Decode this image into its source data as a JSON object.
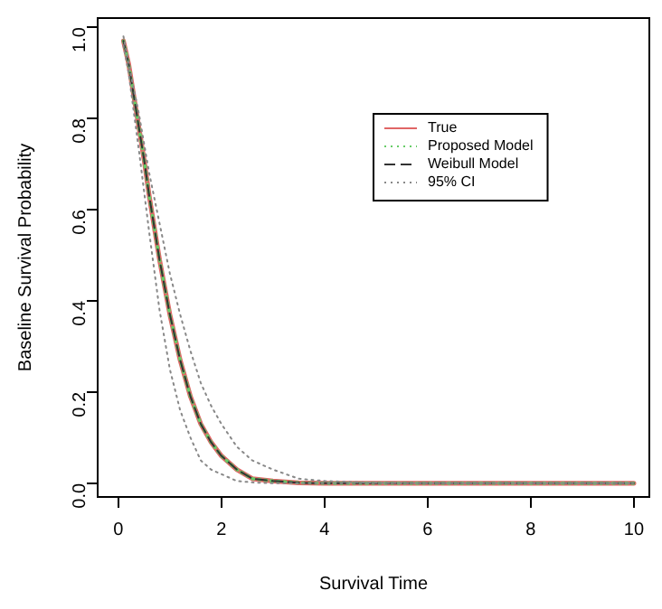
{
  "chart_data": {
    "type": "line",
    "xlabel": "Survival Time",
    "ylabel": "Baseline Survival Probability",
    "xlim": [
      -0.4,
      10.3
    ],
    "ylim": [
      -0.03,
      1.02
    ],
    "xticks": [
      0,
      2,
      4,
      6,
      8,
      10
    ],
    "yticks": [
      {
        "value": 0,
        "label": "0.0"
      },
      0.2,
      0.4,
      0.6,
      0.8,
      {
        "value": 1,
        "label": "1.0"
      }
    ],
    "grid": false,
    "legend": "top right",
    "marker": "none",
    "series": [
      {
        "name": "True",
        "color": "#e06666",
        "line_style": "solid",
        "x": [
          0.1,
          0.2,
          0.3,
          0.4,
          0.5,
          0.6,
          0.7,
          0.8,
          0.9,
          1.0,
          1.2,
          1.4,
          1.6,
          1.8,
          2.0,
          2.3,
          2.6,
          3.0,
          3.5,
          4,
          5,
          6,
          7,
          8,
          9,
          10
        ],
        "values": [
          0.97,
          0.92,
          0.85,
          0.78,
          0.71,
          0.63,
          0.56,
          0.49,
          0.43,
          0.37,
          0.27,
          0.19,
          0.13,
          0.09,
          0.06,
          0.03,
          0.01,
          0.005,
          0.001,
          0,
          0,
          0,
          0,
          0,
          0,
          0
        ]
      },
      {
        "name": "Proposed Model",
        "color": "#66cc66",
        "line_style": "dotted",
        "x": [
          0.1,
          0.2,
          0.3,
          0.4,
          0.5,
          0.6,
          0.7,
          0.8,
          0.9,
          1.0,
          1.2,
          1.4,
          1.6,
          1.8,
          2.0,
          2.3,
          2.6,
          3.0,
          3.5,
          4,
          5,
          6,
          7,
          8,
          9,
          10
        ],
        "values": [
          0.97,
          0.92,
          0.85,
          0.78,
          0.71,
          0.63,
          0.56,
          0.49,
          0.43,
          0.37,
          0.27,
          0.19,
          0.13,
          0.09,
          0.06,
          0.03,
          0.01,
          0.005,
          0.001,
          0,
          0,
          0,
          0,
          0,
          0,
          0
        ]
      },
      {
        "name": "Weibull Model",
        "color": "#333333",
        "line_style": "dashed",
        "x": [
          0.1,
          0.2,
          0.3,
          0.4,
          0.5,
          0.6,
          0.7,
          0.8,
          0.9,
          1.0,
          1.2,
          1.4,
          1.6,
          1.8,
          2.0,
          2.3,
          2.6,
          3.0,
          3.5,
          4,
          5,
          6,
          7,
          8,
          9,
          10
        ],
        "values": [
          0.97,
          0.92,
          0.85,
          0.78,
          0.71,
          0.63,
          0.56,
          0.49,
          0.43,
          0.37,
          0.27,
          0.19,
          0.13,
          0.09,
          0.06,
          0.03,
          0.01,
          0.005,
          0.001,
          0,
          0,
          0,
          0,
          0,
          0,
          0
        ]
      },
      {
        "name": "95% CI",
        "color": "#888888",
        "line_style": "dotted",
        "x": [
          0.1,
          0.2,
          0.4,
          0.6,
          0.8,
          1.0,
          1.2,
          1.4,
          1.6,
          1.8,
          2.0,
          2.3,
          2.6,
          3.0,
          3.5,
          4,
          5,
          6,
          7,
          8,
          9,
          10
        ],
        "values": [
          0.98,
          0.92,
          0.81,
          0.68,
          0.57,
          0.46,
          0.37,
          0.29,
          0.22,
          0.17,
          0.13,
          0.08,
          0.05,
          0.03,
          0.01,
          0.005,
          0.001,
          0,
          0,
          0,
          0,
          0
        ]
      },
      {
        "color": "#888888",
        "line_style": "dotted",
        "x": [
          0.1,
          0.2,
          0.4,
          0.6,
          0.8,
          1.0,
          1.2,
          1.4,
          1.6,
          1.8,
          2.0,
          2.3,
          2.6,
          3.0,
          3.5,
          4,
          5,
          6,
          7,
          8,
          9,
          10
        ],
        "values": [
          0.96,
          0.9,
          0.73,
          0.55,
          0.38,
          0.25,
          0.16,
          0.1,
          0.05,
          0.03,
          0.02,
          0.005,
          0.002,
          0,
          0,
          0,
          0,
          0,
          0,
          0,
          0,
          0
        ]
      }
    ]
  }
}
